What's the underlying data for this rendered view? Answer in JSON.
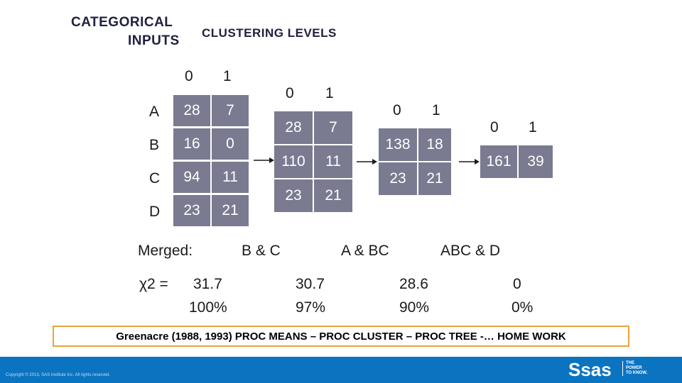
{
  "header": {
    "categorical": "CATEGORICAL",
    "inputs": "INPUTS",
    "clustering": "CLUSTERING LEVELS"
  },
  "cols": {
    "zero": "0",
    "one": "1"
  },
  "table1": {
    "rows": [
      {
        "label": "A",
        "v0": "28",
        "v1": "7"
      },
      {
        "label": "B",
        "v0": "16",
        "v1": "0"
      },
      {
        "label": "C",
        "v0": "94",
        "v1": "11"
      },
      {
        "label": "D",
        "v0": "23",
        "v1": "21"
      }
    ]
  },
  "table2": {
    "rows": [
      [
        "28",
        "7"
      ],
      [
        "110",
        "11"
      ],
      [
        "23",
        "21"
      ]
    ]
  },
  "table3": {
    "rows": [
      [
        "138",
        "18"
      ],
      [
        "23",
        "21"
      ]
    ]
  },
  "table4": {
    "rows": [
      [
        "161",
        "39"
      ]
    ]
  },
  "merged": {
    "label": "Merged:",
    "l1": "B & C",
    "l2": "A & BC",
    "l3": "ABC & D"
  },
  "chi": {
    "label": "χ2 =",
    "c1_val": "31.7",
    "c1_pct": "100%",
    "c2_val": "30.7",
    "c2_pct": "97%",
    "c3_val": "28.6",
    "c3_pct": "90%",
    "c4_val": "0",
    "c4_pct": "0%"
  },
  "note": "Greenacre (1988, 1993) PROC MEANS – PROC CLUSTER – PROC TREE -… HOME WORK",
  "footer": {
    "copyright": "Copyright © 2013, SAS Institute Inc. All rights reserved.",
    "logo": "Ssas",
    "tagline1": "THE",
    "tagline2": "POWER",
    "tagline3": "TO KNOW."
  },
  "colors": {
    "cell": "#7a7a90",
    "accent": "#0b74c1",
    "note_border": "#e8a33a"
  }
}
